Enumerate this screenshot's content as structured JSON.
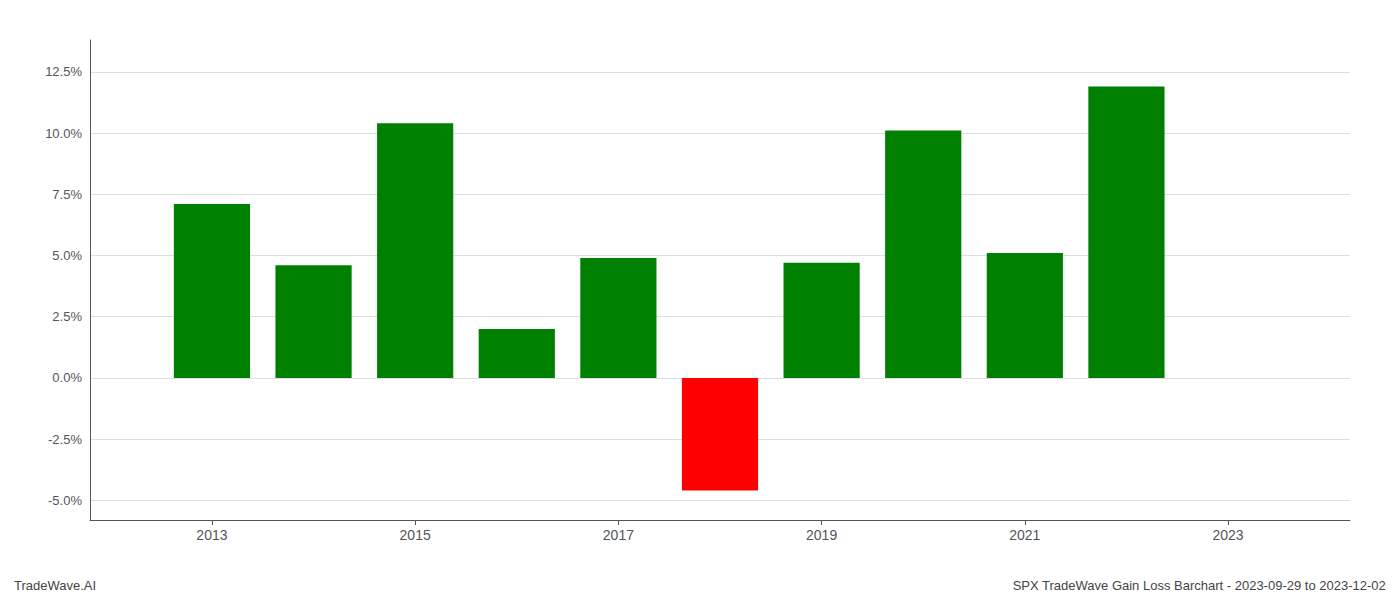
{
  "chart_data": {
    "type": "bar",
    "x": [
      2013,
      2014,
      2015,
      2016,
      2017,
      2018,
      2019,
      2020,
      2021,
      2022
    ],
    "values": [
      0.071,
      0.046,
      0.104,
      0.02,
      0.049,
      -0.046,
      0.047,
      0.101,
      0.051,
      0.119
    ],
    "colors": [
      "#008000",
      "#008000",
      "#008000",
      "#008000",
      "#008000",
      "#ff0000",
      "#008000",
      "#008000",
      "#008000",
      "#008000"
    ],
    "xlim": [
      2011.8,
      2024.2
    ],
    "xticks": [
      2013,
      2015,
      2017,
      2019,
      2021,
      2023
    ],
    "ylim": [
      -0.058,
      0.138
    ],
    "yticks": [
      {
        "value": -0.05,
        "label": "-5.0%"
      },
      {
        "value": -0.025,
        "label": "-2.5%"
      },
      {
        "value": 0.0,
        "label": "0.0%"
      },
      {
        "value": 0.025,
        "label": "2.5%"
      },
      {
        "value": 0.05,
        "label": "5.0%"
      },
      {
        "value": 0.075,
        "label": "7.5%"
      },
      {
        "value": 0.1,
        "label": "10.0%"
      },
      {
        "value": 0.125,
        "label": "12.5%"
      }
    ],
    "grid": true,
    "annotations": [
      "TradeWave.AI",
      "SPX TradeWave Gain Loss Barchart - 2023-09-29 to 2023-12-02"
    ]
  }
}
